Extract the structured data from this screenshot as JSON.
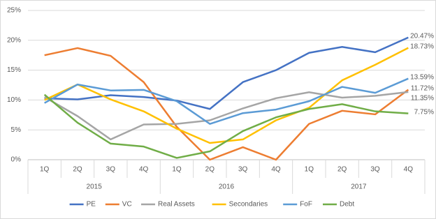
{
  "chart_data": {
    "type": "line",
    "categories": [
      "1Q",
      "2Q",
      "3Q",
      "4Q",
      "1Q",
      "2Q",
      "3Q",
      "4Q",
      "1Q",
      "2Q",
      "3Q",
      "4Q"
    ],
    "category_groups": [
      "2015",
      "2016",
      "2017"
    ],
    "ylim": [
      0,
      25
    ],
    "yticks": [
      {
        "value": 0,
        "label": "0%"
      },
      {
        "value": 5,
        "label": "5%"
      },
      {
        "value": 10,
        "label": "10%"
      },
      {
        "value": 15,
        "label": "15%"
      },
      {
        "value": 20,
        "label": "20%"
      },
      {
        "value": 25,
        "label": "25%"
      }
    ],
    "grid": true,
    "legend": "bottom",
    "series": [
      {
        "name": "PE",
        "color": "#4472c4",
        "values": [
          10.3,
          10.1,
          10.8,
          10.5,
          9.9,
          8.5,
          13.0,
          15.0,
          17.9,
          18.9,
          18.0,
          20.47
        ],
        "value_labels": [
          null,
          null,
          null,
          null,
          null,
          null,
          null,
          null,
          null,
          null,
          null,
          "20.47%"
        ]
      },
      {
        "name": "VC",
        "color": "#ed7d31",
        "values": [
          17.5,
          18.7,
          17.4,
          13.0,
          5.5,
          0.0,
          2.1,
          0.0,
          6.0,
          8.2,
          7.6,
          11.72
        ],
        "value_labels": [
          null,
          null,
          null,
          null,
          null,
          null,
          null,
          null,
          null,
          null,
          null,
          "11.72%"
        ]
      },
      {
        "name": "Real Assets",
        "color": "#a5a5a5",
        "values": [
          10.5,
          7.3,
          3.4,
          5.9,
          6.0,
          6.6,
          8.6,
          10.3,
          11.3,
          10.4,
          10.7,
          11.35
        ],
        "value_labels": [
          null,
          null,
          null,
          null,
          null,
          null,
          null,
          null,
          null,
          null,
          null,
          "11.35%"
        ]
      },
      {
        "name": "Secondaries",
        "color": "#ffc000",
        "values": [
          10.0,
          12.6,
          10.1,
          8.1,
          5.2,
          2.8,
          3.4,
          6.6,
          8.7,
          13.3,
          15.9,
          18.73
        ],
        "value_labels": [
          null,
          null,
          null,
          null,
          null,
          null,
          null,
          null,
          null,
          null,
          null,
          "18.73%"
        ]
      },
      {
        "name": "FoF",
        "color": "#5b9bd5",
        "values": [
          9.5,
          12.6,
          11.6,
          11.7,
          9.8,
          6.0,
          7.8,
          8.4,
          9.8,
          12.2,
          11.2,
          13.59
        ],
        "value_labels": [
          null,
          null,
          null,
          null,
          null,
          null,
          null,
          null,
          null,
          null,
          null,
          "13.59%"
        ]
      },
      {
        "name": "Debt",
        "color": "#70ad47",
        "values": [
          10.9,
          6.2,
          2.7,
          2.2,
          0.3,
          1.4,
          4.8,
          7.1,
          8.5,
          9.3,
          8.1,
          7.75
        ],
        "value_labels": [
          null,
          null,
          null,
          null,
          null,
          null,
          null,
          null,
          null,
          null,
          null,
          "7.75%"
        ]
      }
    ]
  }
}
